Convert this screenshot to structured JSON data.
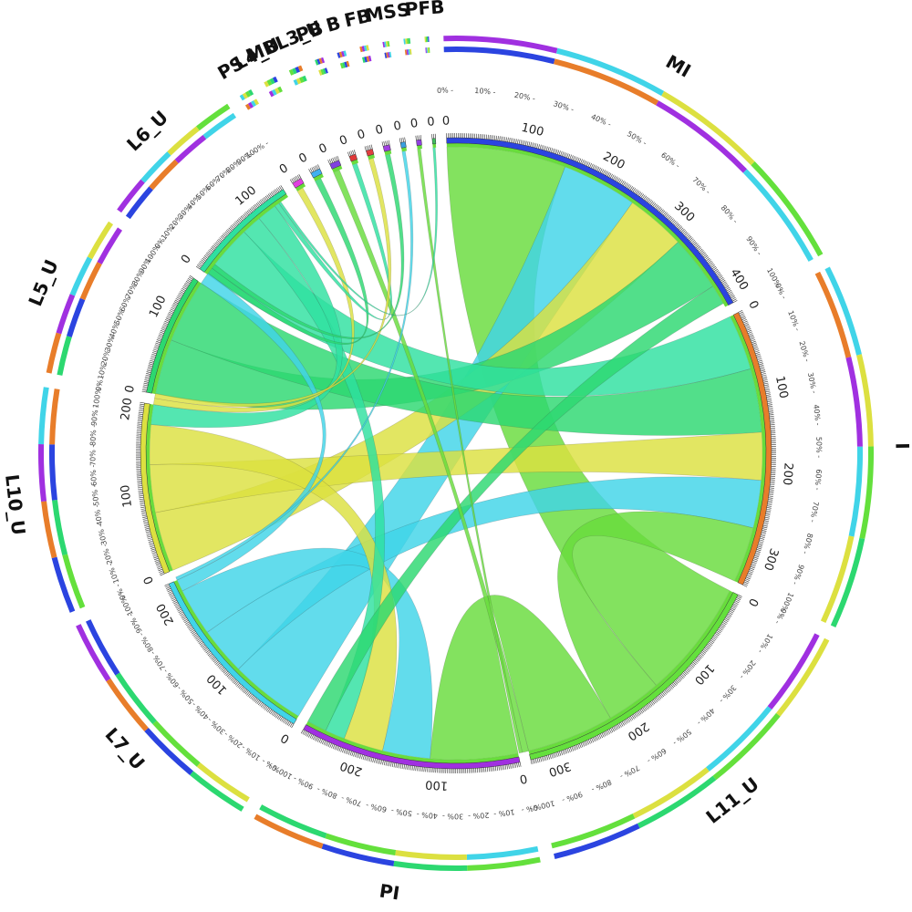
{
  "chart_data": {
    "type": "chord",
    "title": "",
    "tick_step": 100,
    "percent_ticks": [
      "0%",
      "10%",
      "20%",
      "30%",
      "40%",
      "50%",
      "60%",
      "70%",
      "80%",
      "90%",
      "100%"
    ],
    "segments": [
      {
        "label": "MI",
        "size": 420,
        "color": "#2b44e0"
      },
      {
        "label": "I",
        "size": 340,
        "color": "#e87d2a"
      },
      {
        "label": "L11_U",
        "size": 330,
        "color": "#64e03c"
      },
      {
        "label": "PI",
        "size": 270,
        "color": "#a030e0"
      },
      {
        "label": "L7_U",
        "size": 230,
        "color": "#40d4e8"
      },
      {
        "label": "L10_U",
        "size": 210,
        "color": "#dce040"
      },
      {
        "label": "L5_U",
        "size": 150,
        "color": "#2cd870"
      },
      {
        "label": "L6_U",
        "size": 140,
        "color": "#2ee0a0"
      },
      {
        "label": "PS",
        "size": 12,
        "color": "#e040e0"
      },
      {
        "label": "L4_U",
        "size": 12,
        "color": "#40b0f0"
      },
      {
        "label": "MBL3_U",
        "size": 12,
        "color": "#8040e0"
      },
      {
        "label": "PB",
        "size": 8,
        "color": "#e03838"
      },
      {
        "label": "B",
        "size": 8,
        "color": "#e04040"
      },
      {
        "label": "FB",
        "size": 8,
        "color": "#a040e0"
      },
      {
        "label": "MS",
        "size": 6,
        "color": "#3aa0e0"
      },
      {
        "label": "S",
        "size": 6,
        "color": "#9040e0"
      },
      {
        "label": "PFB",
        "size": 4,
        "color": "#40c060"
      }
    ],
    "flows": [
      {
        "from": "MI",
        "to": "L11_U",
        "value": 150,
        "color": "#68dc3c"
      },
      {
        "from": "MI",
        "to": "L7_U",
        "value": 95,
        "color": "#40d4e8"
      },
      {
        "from": "MI",
        "to": "L10_U",
        "value": 75,
        "color": "#dce040"
      },
      {
        "from": "MI",
        "to": "L5_U",
        "value": 70,
        "color": "#2cd870"
      },
      {
        "from": "I",
        "to": "L6_U",
        "value": 70,
        "color": "#2ee0a0"
      },
      {
        "from": "I",
        "to": "L5_U",
        "value": 80,
        "color": "#2cd870"
      },
      {
        "from": "I",
        "to": "L10_U",
        "value": 60,
        "color": "#dce040"
      },
      {
        "from": "I",
        "to": "L7_U",
        "value": 60,
        "color": "#40d4e8"
      },
      {
        "from": "I",
        "to": "L11_U",
        "value": 70,
        "color": "#68dc3c"
      },
      {
        "from": "PI",
        "to": "L11_U",
        "value": 110,
        "color": "#68dc3c"
      },
      {
        "from": "PI",
        "to": "L7_U",
        "value": 60,
        "color": "#40d4e8"
      },
      {
        "from": "PI",
        "to": "L10_U",
        "value": 50,
        "color": "#dce040"
      },
      {
        "from": "PI",
        "to": "L6_U",
        "value": 25,
        "color": "#2ee0a0"
      },
      {
        "from": "PI",
        "to": "MI",
        "value": 25,
        "color": "#2cd870"
      },
      {
        "from": "L6_U",
        "to": "L10_U",
        "value": 25,
        "color": "#2ee0a0"
      },
      {
        "from": "L5_U",
        "to": "L7_U",
        "value": 15,
        "color": "#40d4e8"
      },
      {
        "from": "PS",
        "to": "L10_U",
        "value": 8,
        "color": "#dce040"
      },
      {
        "from": "L4_U",
        "to": "L5_U",
        "value": 8,
        "color": "#2cd870"
      },
      {
        "from": "MBL3_U",
        "to": "L11_U",
        "value": 8,
        "color": "#68dc3c"
      },
      {
        "from": "PB",
        "to": "L6_U",
        "value": 6,
        "color": "#2ee0a0"
      },
      {
        "from": "B",
        "to": "L10_U",
        "value": 6,
        "color": "#dce040"
      },
      {
        "from": "FB",
        "to": "L5_U",
        "value": 6,
        "color": "#2cd870"
      },
      {
        "from": "MS",
        "to": "L7_U",
        "value": 4,
        "color": "#40d4e8"
      },
      {
        "from": "S",
        "to": "L11_U",
        "value": 4,
        "color": "#68dc3c"
      },
      {
        "from": "PFB",
        "to": "L6_U",
        "value": 3,
        "color": "#2ee0a0"
      }
    ],
    "grid": false,
    "legend": "none"
  }
}
